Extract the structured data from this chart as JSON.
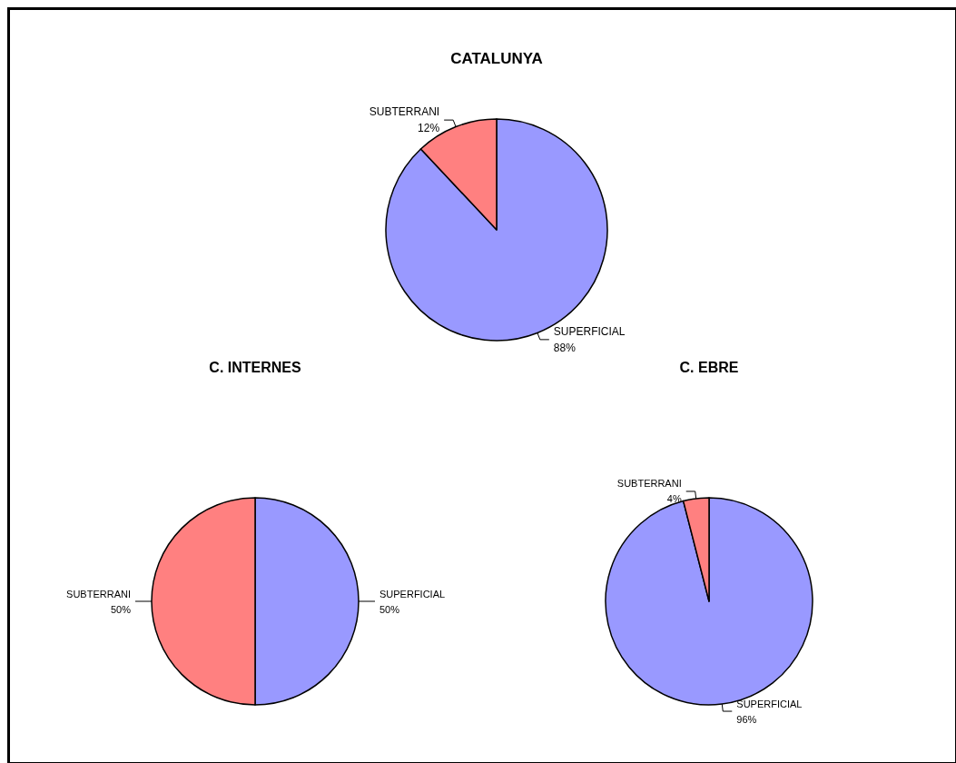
{
  "chart_data": [
    {
      "type": "pie",
      "title": "CATALUNYA",
      "categories": [
        "SUPERFICIAL",
        "SUBTERRANI"
      ],
      "values": [
        88,
        12
      ],
      "value_labels": [
        "88%",
        "12%"
      ],
      "colors": [
        "#9999ff",
        "#ff8080"
      ]
    },
    {
      "type": "pie",
      "title": "C. INTERNES",
      "categories": [
        "SUPERFICIAL",
        "SUBTERRANI"
      ],
      "values": [
        50,
        50
      ],
      "value_labels": [
        "50%",
        "50%"
      ],
      "colors": [
        "#9999ff",
        "#ff8080"
      ]
    },
    {
      "type": "pie",
      "title": "C. EBRE",
      "categories": [
        "SUPERFICIAL",
        "SUBTERRANI"
      ],
      "values": [
        96,
        4
      ],
      "value_labels": [
        "96%",
        "4%"
      ],
      "colors": [
        "#9999ff",
        "#ff8080"
      ]
    }
  ]
}
